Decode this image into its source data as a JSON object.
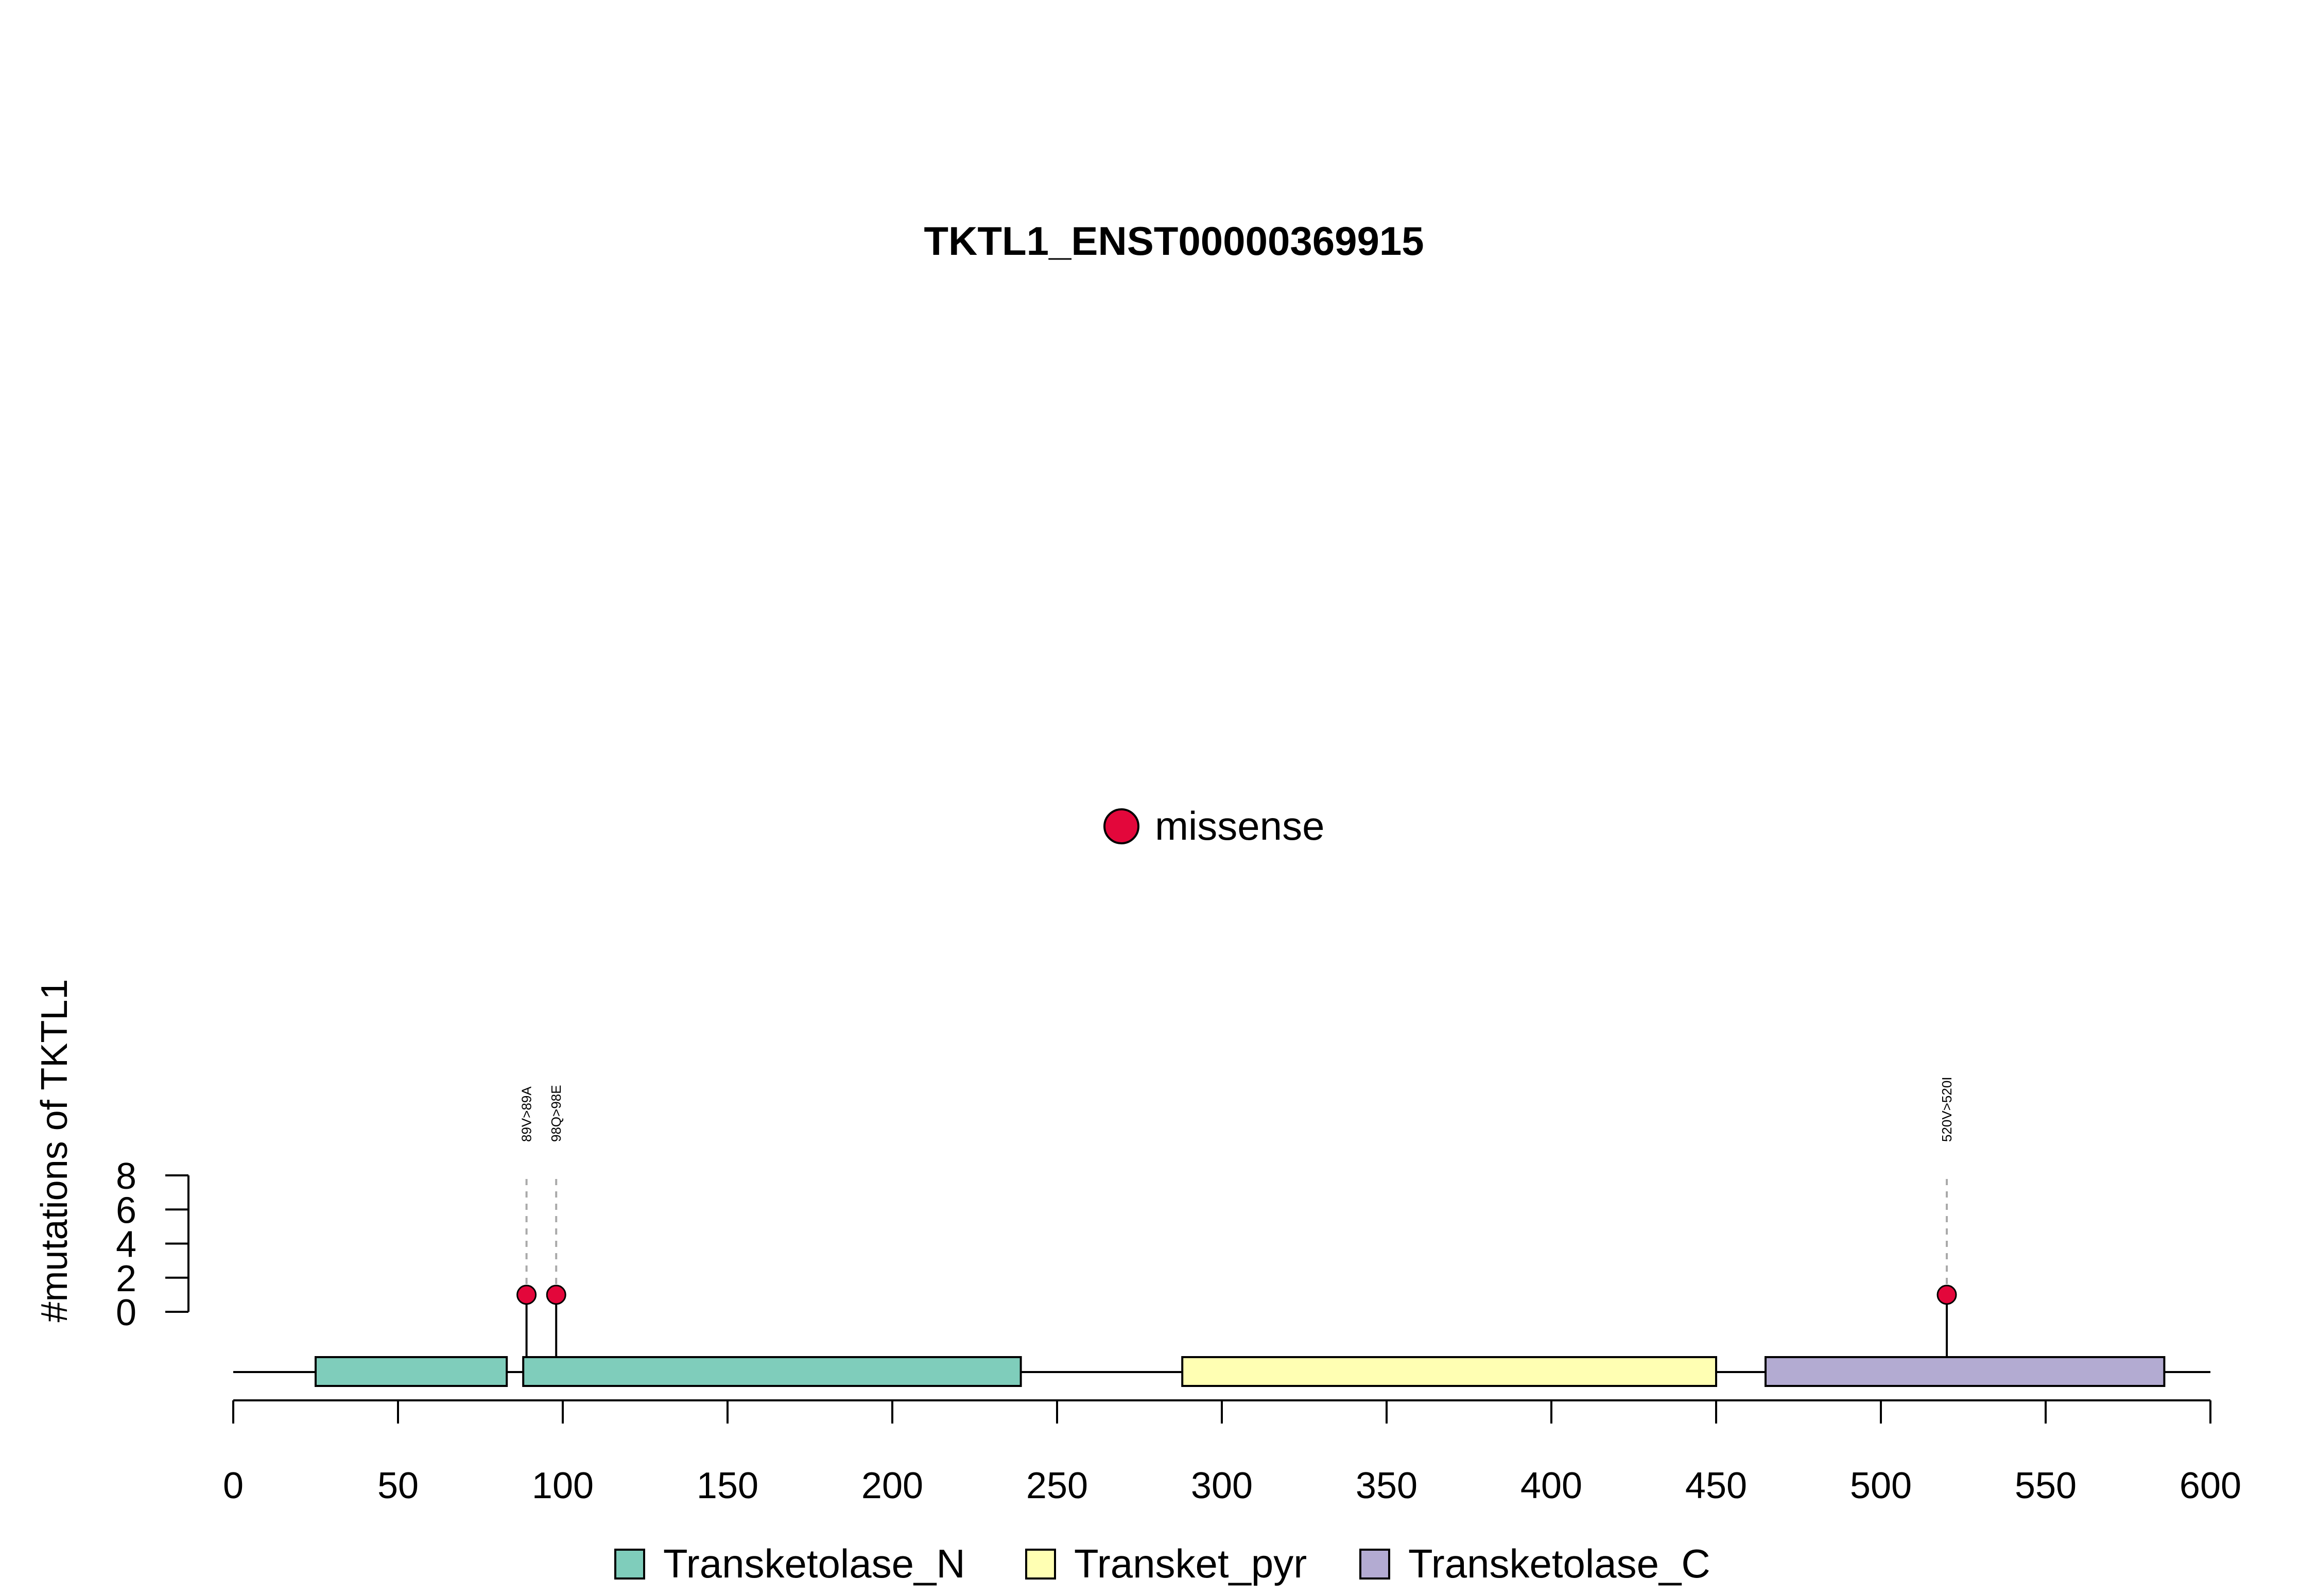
{
  "chart_data": {
    "type": "lollipop",
    "title": "TKTL1_ENST00000369915",
    "ylabel": "#mutations of TKTL1",
    "xlim": [
      0,
      600
    ],
    "x_ticks": [
      0,
      50,
      100,
      150,
      200,
      250,
      300,
      350,
      400,
      450,
      500,
      550,
      600
    ],
    "ylim": [
      0,
      8
    ],
    "y_ticks": [
      0,
      2,
      4,
      6,
      8
    ],
    "protein_length": 600,
    "domains": [
      {
        "name": "Transketolase_N",
        "start": 25,
        "end": 83,
        "color": "#7fcdbb"
      },
      {
        "name": "Transketolase_N",
        "start": 88,
        "end": 239,
        "color": "#7fcdbb"
      },
      {
        "name": "Transket_pyr",
        "start": 288,
        "end": 450,
        "color": "#ffffb3"
      },
      {
        "name": "Transketolase_C",
        "start": 465,
        "end": 586,
        "color": "#b3abd2"
      }
    ],
    "mutations": [
      {
        "position": 89,
        "count": 1,
        "label": "89V>89A",
        "type": "missense"
      },
      {
        "position": 98,
        "count": 1,
        "label": "98Q>98E",
        "type": "missense"
      },
      {
        "position": 520,
        "count": 1,
        "label": "520V>520I",
        "type": "missense"
      }
    ],
    "mutation_legend": [
      {
        "label": "missense",
        "color": "#e3073b"
      }
    ],
    "domain_legend": [
      {
        "label": "Transketolase_N",
        "color": "#7fcdbb"
      },
      {
        "label": "Transket_pyr",
        "color": "#ffffb3"
      },
      {
        "label": "Transketolase_C",
        "color": "#b3abd2"
      }
    ]
  }
}
